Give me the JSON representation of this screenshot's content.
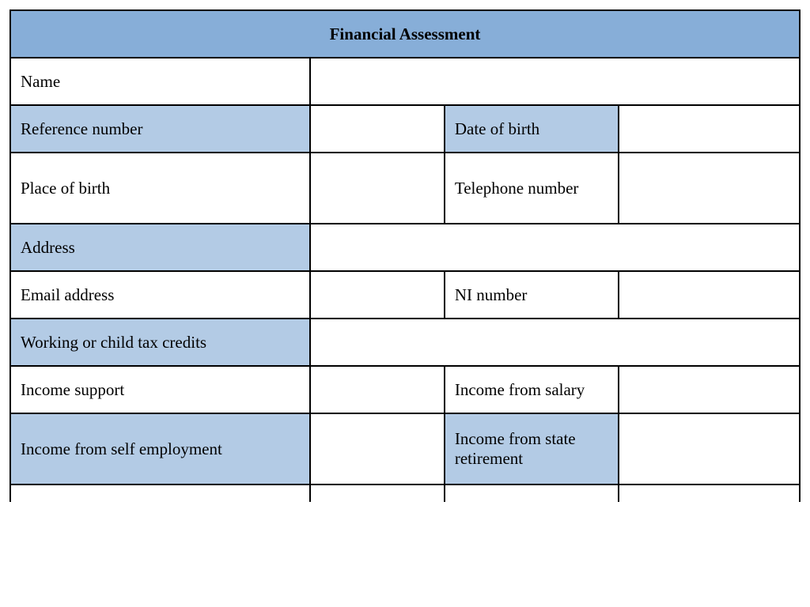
{
  "form": {
    "title": "Financial Assessment",
    "rows": {
      "name": {
        "label": "Name"
      },
      "reference_number": {
        "label": "Reference number"
      },
      "date_of_birth": {
        "label": "Date of birth"
      },
      "place_of_birth": {
        "label": "Place of birth"
      },
      "telephone_number": {
        "label": "Telephone number"
      },
      "address": {
        "label": "Address"
      },
      "email_address": {
        "label": "Email address"
      },
      "ni_number": {
        "label": "NI number"
      },
      "tax_credits": {
        "label": "Working or child tax credits"
      },
      "income_support": {
        "label": "Income support"
      },
      "income_from_salary": {
        "label": "Income from salary"
      },
      "income_self_employment": {
        "label": "Income from self employment"
      },
      "income_state_retirement": {
        "label": "Income from state retirement"
      }
    }
  },
  "styling": {
    "type": "table",
    "header_bg": "#87aed8",
    "shaded_bg": "#b3cbe5",
    "background_color": "#ffffff",
    "border_color": "#000000",
    "text_color": "#000000",
    "title_fontsize": 28,
    "label_fontsize": 21,
    "border_width": 2,
    "col_widths": {
      "label": 380,
      "gap": 170,
      "label2": 220,
      "val": 230
    }
  }
}
